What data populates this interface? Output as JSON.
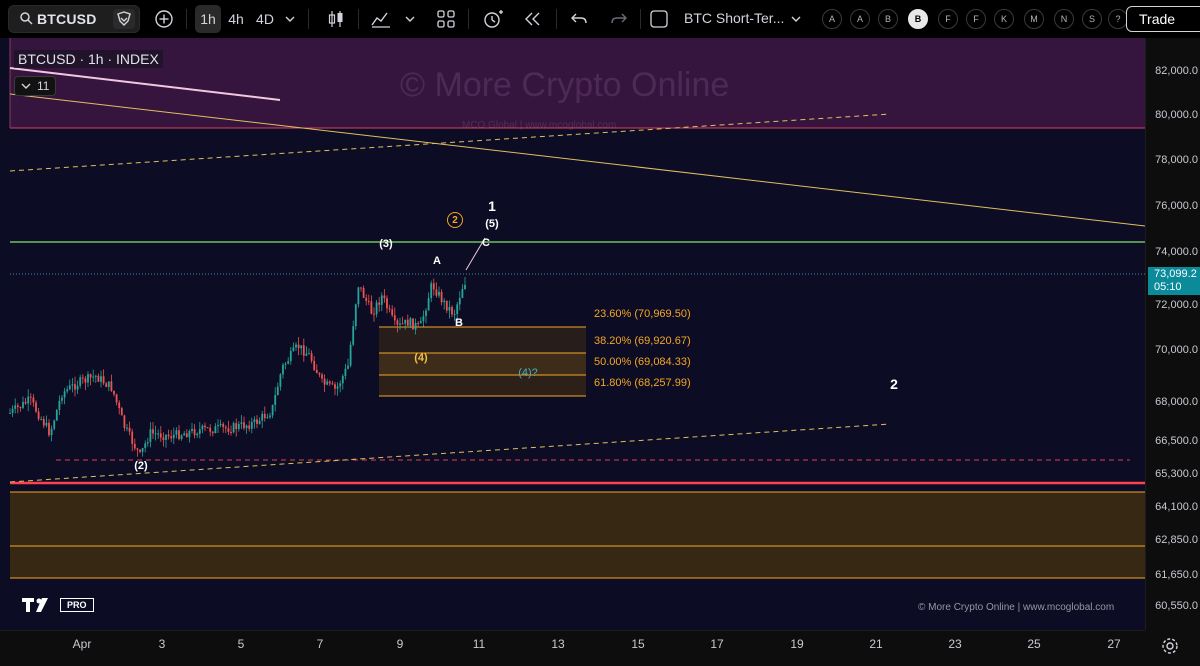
{
  "toolbar": {
    "symbol": "BTCUSD",
    "intervals": [
      "1h",
      "4h",
      "4D"
    ],
    "active_interval": "1h",
    "alert_name": "BTC Short-Ter...",
    "circle_buttons": [
      "A",
      "A",
      "B",
      "B",
      "F",
      "F",
      "K",
      "M",
      "N",
      "S",
      "?"
    ],
    "selected_circle": "B",
    "trade_label": "Trade"
  },
  "chart": {
    "legend": "BTCUSD · 1h · INDEX",
    "indicator_count": "11",
    "watermark": "© More Crypto Online",
    "watermark_sub": "MCO Global | www.mcoglobal.com",
    "copyright": "© More Crypto Online  |  www.mcoglobal.com",
    "tv_badge": "PRO",
    "wave_labels": {
      "w1": "1",
      "w2": "2",
      "w5": "(5)",
      "w3": "(3)",
      "w4": "(4)",
      "w2p": "(2)",
      "wA": "A",
      "wB": "B",
      "wC": "C",
      "w4q": "(4)?",
      "circ2": "2"
    },
    "fib_levels": [
      "23.60% (70,969.50)",
      "38.20% (69,920.67)",
      "50.00% (69,084.33)",
      "61.80% (68,257.99)"
    ],
    "last_price": "73,099.2",
    "countdown": "05:10",
    "colors": {
      "background": "#0c0c24",
      "resistance_zone": "#3a1640",
      "support_zone": "#3a2a14",
      "fib_line": "#f5a623",
      "green_line": "#6fbf5f",
      "red_line": "#e04050",
      "trend_line": "#e0c060"
    }
  },
  "price_axis": [
    "82,000.0",
    "80,000.0",
    "78,000.0",
    "76,000.0",
    "74,000.0",
    "72,000.0",
    "70,000.0",
    "68,000.0",
    "66,500.0",
    "65,300.0",
    "64,100.0",
    "62,850.0",
    "61,650.0",
    "60,550.0"
  ],
  "time_axis": [
    "Apr",
    "3",
    "5",
    "7",
    "9",
    "11",
    "13",
    "15",
    "17",
    "19",
    "21",
    "23",
    "25",
    "27"
  ]
}
